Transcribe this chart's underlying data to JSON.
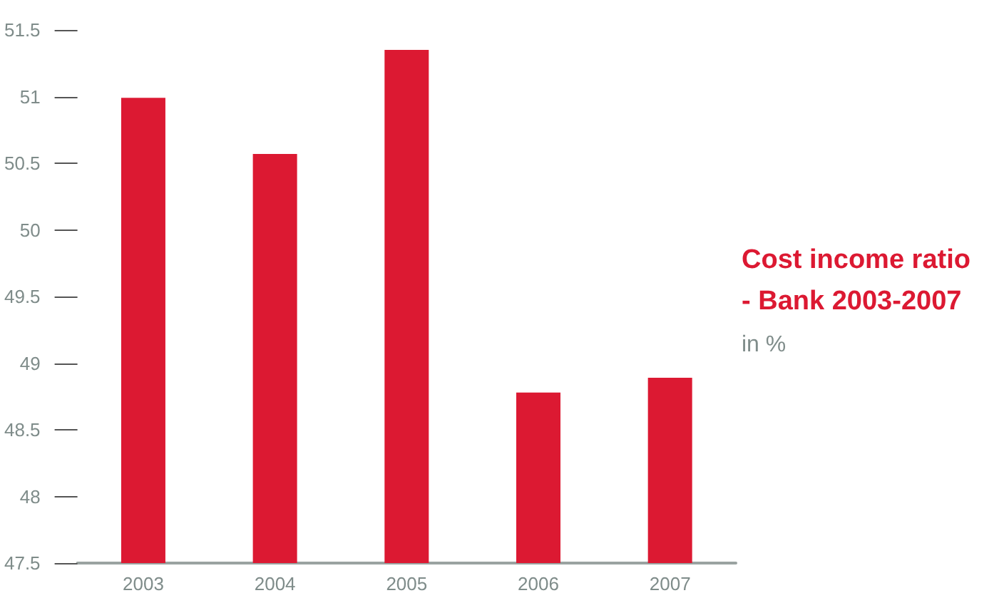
{
  "chart_data": {
    "type": "bar",
    "title": "Cost income ratio\n- Bank 2003-2007",
    "subtitle": "in %",
    "categories": [
      "2003",
      "2004",
      "2005",
      "2006",
      "2007"
    ],
    "values": [
      50.99,
      50.57,
      51.35,
      48.78,
      48.89
    ],
    "color": "#dc1932",
    "ylim": [
      47.5,
      51.5
    ],
    "yticks": [
      47.5,
      48,
      48.5,
      49,
      49.5,
      50,
      50.5,
      51,
      51.5
    ],
    "grid": false
  }
}
